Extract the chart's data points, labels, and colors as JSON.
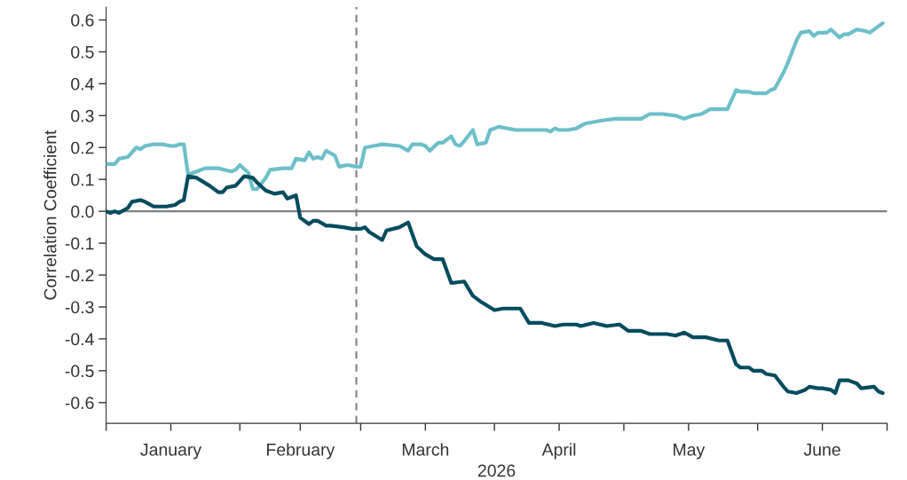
{
  "chart_data": {
    "type": "line",
    "xlabel": "2026",
    "ylabel": "Correlation Coefficient",
    "xlim": [
      "2026-01-01",
      "2026-07-01"
    ],
    "xticks": [
      {
        "value": "2026-01-01",
        "label": null
      },
      {
        "value": "2026-01-16",
        "label": "January"
      },
      {
        "value": "2026-02-01",
        "label": null
      },
      {
        "value": "2026-02-15",
        "label": "February"
      },
      {
        "value": "2026-03-01",
        "label": null
      },
      {
        "value": "2026-03-16",
        "label": "March"
      },
      {
        "value": "2026-04-01",
        "label": null
      },
      {
        "value": "2026-04-16",
        "label": "April"
      },
      {
        "value": "2026-05-01",
        "label": null
      },
      {
        "value": "2026-05-16",
        "label": "May"
      },
      {
        "value": "2026-06-01",
        "label": null
      },
      {
        "value": "2026-06-16",
        "label": "June"
      },
      {
        "value": "2026-07-01",
        "label": null
      }
    ],
    "ylim": [
      -0.665,
      0.64
    ],
    "yticks": [
      -0.6,
      -0.5,
      -0.4,
      -0.3,
      -0.2,
      -0.1,
      {
        "value": 0,
        "label": "0.0"
      },
      0.1,
      0.2,
      0.3,
      0.4,
      0.5,
      0.6
    ],
    "grid": false,
    "legend": false,
    "marker": "none",
    "line_style": "solid",
    "ref_lines": [
      {
        "axis": "y",
        "value": 0,
        "color": "#808080",
        "line_style": "solid"
      },
      {
        "axis": "x",
        "value": "2026-02-28",
        "color": "#808080",
        "line_style": "dashed"
      }
    ],
    "series": [
      {
        "color": "#6cbfca",
        "x": [
          "2026-01-01",
          "2026-01-02",
          "2026-01-03",
          "2026-01-04",
          "2026-01-06",
          "2026-01-08",
          "2026-01-09",
          "2026-01-10",
          "2026-01-12",
          "2026-01-14",
          "2026-01-16",
          "2026-01-17",
          "2026-01-18",
          "2026-01-19",
          "2026-01-20",
          "2026-01-22",
          "2026-01-24",
          "2026-01-27",
          "2026-01-30",
          "2026-01-31",
          "2026-02-01",
          "2026-02-03",
          "2026-02-04",
          "2026-02-05",
          "2026-02-07",
          "2026-02-08",
          "2026-02-11",
          "2026-02-13",
          "2026-02-14",
          "2026-02-16",
          "2026-02-17",
          "2026-02-18",
          "2026-02-19",
          "2026-02-20",
          "2026-02-21",
          "2026-02-23",
          "2026-02-24",
          "2026-02-26",
          "2026-02-28",
          "2026-03-01",
          "2026-03-02",
          "2026-03-04",
          "2026-03-06",
          "2026-03-10",
          "2026-03-12",
          "2026-03-13",
          "2026-03-15",
          "2026-03-16",
          "2026-03-17",
          "2026-03-19",
          "2026-03-20",
          "2026-03-22",
          "2026-03-23",
          "2026-03-24",
          "2026-03-25",
          "2026-03-27",
          "2026-03-28",
          "2026-03-30",
          "2026-03-31",
          "2026-04-02",
          "2026-04-04",
          "2026-04-06",
          "2026-04-08",
          "2026-04-10",
          "2026-04-13",
          "2026-04-14",
          "2026-04-15",
          "2026-04-16",
          "2026-04-18",
          "2026-04-20",
          "2026-04-22",
          "2026-04-24",
          "2026-04-26",
          "2026-04-29",
          "2026-05-01",
          "2026-05-05",
          "2026-05-07",
          "2026-05-10",
          "2026-05-13",
          "2026-05-15",
          "2026-05-17",
          "2026-05-19",
          "2026-05-21",
          "2026-05-24",
          "2026-05-25",
          "2026-05-27",
          "2026-05-28",
          "2026-05-30",
          "2026-05-31",
          "2026-06-03",
          "2026-06-04",
          "2026-06-05",
          "2026-06-07",
          "2026-06-08",
          "2026-06-10",
          "2026-06-11",
          "2026-06-13",
          "2026-06-14",
          "2026-06-15",
          "2026-06-17",
          "2026-06-18",
          "2026-06-20",
          "2026-06-21",
          "2026-06-22",
          "2026-06-24",
          "2026-06-26",
          "2026-06-27",
          "2026-06-29",
          "2026-06-30"
        ],
        "values": [
          0.148,
          0.148,
          0.148,
          0.165,
          0.17,
          0.2,
          0.195,
          0.205,
          0.21,
          0.21,
          0.205,
          0.205,
          0.21,
          0.21,
          0.115,
          0.125,
          0.135,
          0.135,
          0.125,
          0.13,
          0.145,
          0.12,
          0.07,
          0.07,
          0.105,
          0.13,
          0.135,
          0.135,
          0.165,
          0.16,
          0.185,
          0.165,
          0.17,
          0.165,
          0.19,
          0.175,
          0.14,
          0.145,
          0.14,
          0.14,
          0.2,
          0.205,
          0.21,
          0.205,
          0.19,
          0.21,
          0.21,
          0.205,
          0.19,
          0.215,
          0.215,
          0.235,
          0.21,
          0.205,
          0.22,
          0.255,
          0.21,
          0.215,
          0.255,
          0.265,
          0.26,
          0.255,
          0.255,
          0.255,
          0.255,
          0.25,
          0.26,
          0.255,
          0.255,
          0.26,
          0.275,
          0.28,
          0.285,
          0.29,
          0.29,
          0.29,
          0.305,
          0.305,
          0.3,
          0.29,
          0.3,
          0.305,
          0.32,
          0.32,
          0.32,
          0.38,
          0.375,
          0.375,
          0.37,
          0.37,
          0.38,
          0.385,
          0.435,
          0.465,
          0.535,
          0.56,
          0.565,
          0.55,
          0.56,
          0.56,
          0.57,
          0.545,
          0.555,
          0.555,
          0.57,
          0.565,
          0.56,
          0.58,
          0.59
        ]
      },
      {
        "color": "#004b5f",
        "x": [
          "2026-01-01",
          "2026-01-02",
          "2026-01-03",
          "2026-01-04",
          "2026-01-06",
          "2026-01-07",
          "2026-01-09",
          "2026-01-10",
          "2026-01-12",
          "2026-01-13",
          "2026-01-15",
          "2026-01-17",
          "2026-01-18",
          "2026-01-19",
          "2026-01-20",
          "2026-01-22",
          "2026-01-25",
          "2026-01-27",
          "2026-01-28",
          "2026-01-29",
          "2026-01-31",
          "2026-02-02",
          "2026-02-04",
          "2026-02-05",
          "2026-02-07",
          "2026-02-09",
          "2026-02-11",
          "2026-02-12",
          "2026-02-14",
          "2026-02-15",
          "2026-02-17",
          "2026-02-18",
          "2026-02-19",
          "2026-02-21",
          "2026-02-22",
          "2026-02-25",
          "2026-02-27",
          "2026-03-01",
          "2026-03-02",
          "2026-03-03",
          "2026-03-06",
          "2026-03-07",
          "2026-03-10",
          "2026-03-12",
          "2026-03-14",
          "2026-03-16",
          "2026-03-18",
          "2026-03-20",
          "2026-03-22",
          "2026-03-25",
          "2026-03-27",
          "2026-03-29",
          "2026-04-01",
          "2026-04-03",
          "2026-04-07",
          "2026-04-09",
          "2026-04-12",
          "2026-04-15",
          "2026-04-17",
          "2026-04-20",
          "2026-04-21",
          "2026-04-24",
          "2026-04-27",
          "2026-04-30",
          "2026-05-02",
          "2026-05-05",
          "2026-05-07",
          "2026-05-11",
          "2026-05-13",
          "2026-05-15",
          "2026-05-17",
          "2026-05-20",
          "2026-05-23",
          "2026-05-25",
          "2026-05-27",
          "2026-05-28",
          "2026-05-30",
          "2026-05-31",
          "2026-06-02",
          "2026-06-03",
          "2026-06-05",
          "2026-06-07",
          "2026-06-08",
          "2026-06-10",
          "2026-06-12",
          "2026-06-13",
          "2026-06-15",
          "2026-06-16",
          "2026-06-18",
          "2026-06-19",
          "2026-06-20",
          "2026-06-22",
          "2026-06-24",
          "2026-06-25",
          "2026-06-28",
          "2026-06-29",
          "2026-06-30"
        ],
        "values": [
          0.0,
          -0.005,
          0.0,
          -0.005,
          0.01,
          0.03,
          0.035,
          0.03,
          0.015,
          0.015,
          0.015,
          0.02,
          0.03,
          0.035,
          0.11,
          0.105,
          0.08,
          0.06,
          0.06,
          0.075,
          0.08,
          0.11,
          0.105,
          0.09,
          0.065,
          0.055,
          0.06,
          0.04,
          0.05,
          -0.02,
          -0.04,
          -0.03,
          -0.03,
          -0.045,
          -0.045,
          -0.05,
          -0.055,
          -0.055,
          -0.05,
          -0.065,
          -0.09,
          -0.06,
          -0.05,
          -0.035,
          -0.11,
          -0.135,
          -0.15,
          -0.15,
          -0.225,
          -0.22,
          -0.265,
          -0.285,
          -0.31,
          -0.305,
          -0.305,
          -0.35,
          -0.35,
          -0.36,
          -0.355,
          -0.355,
          -0.36,
          -0.35,
          -0.36,
          -0.355,
          -0.375,
          -0.375,
          -0.385,
          -0.385,
          -0.39,
          -0.38,
          -0.395,
          -0.395,
          -0.405,
          -0.405,
          -0.48,
          -0.49,
          -0.49,
          -0.5,
          -0.5,
          -0.51,
          -0.515,
          -0.55,
          -0.565,
          -0.57,
          -0.56,
          -0.55,
          -0.555,
          -0.555,
          -0.56,
          -0.57,
          -0.53,
          -0.53,
          -0.54,
          -0.555,
          -0.55,
          -0.565,
          -0.57
        ]
      }
    ]
  }
}
